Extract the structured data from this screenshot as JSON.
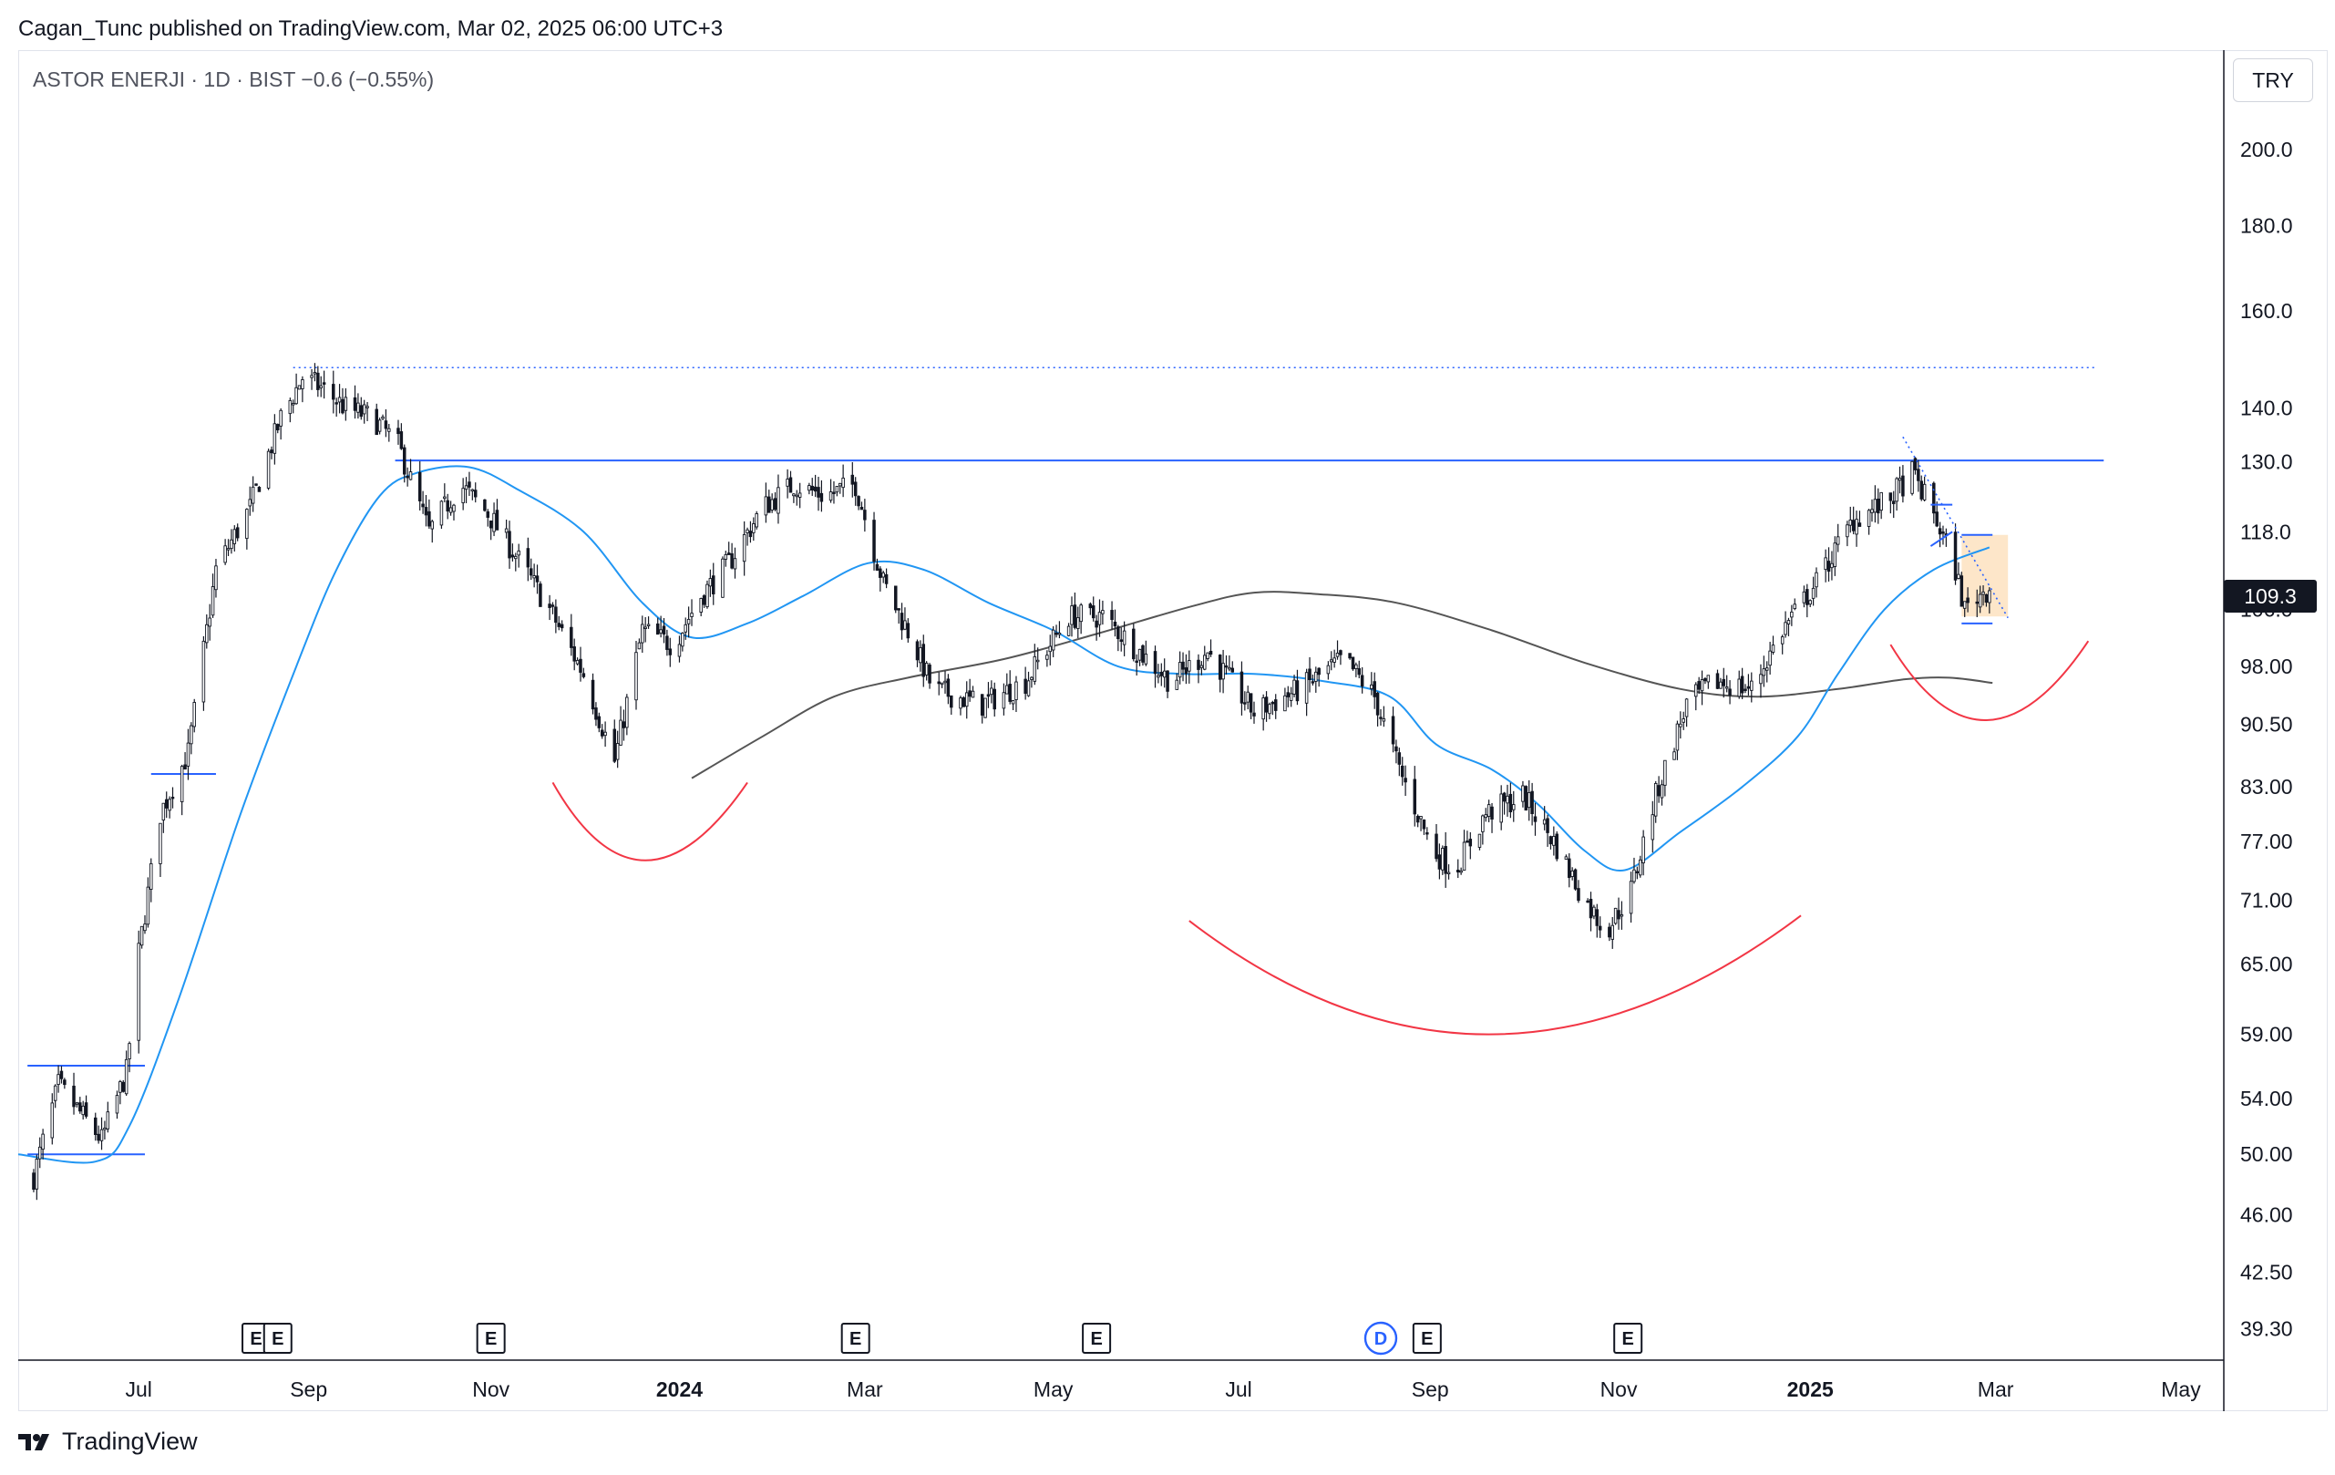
{
  "header": {
    "published_line": "Cagan_Tunc published on TradingView.com, Mar 02, 2025 06:00 UTC+3",
    "symbol_line": "ASTOR ENERJI · 1D · BIST  −0.6 (−0.55%)",
    "currency": "TRY"
  },
  "last_price_label": "109.3",
  "footer": {
    "brand": "TradingView"
  },
  "colors": {
    "candle": "#131722",
    "sma_fast": "#2196f3",
    "sma_slow": "#555555",
    "horizontal_level": "#2962ff",
    "cup_arc": "#f23645",
    "zone_fill": "#fde2c0"
  },
  "chart_data": {
    "type": "candlestick",
    "scale": "log",
    "ylim": [
      37.5,
      220
    ],
    "price_ticks": [
      "200.0",
      "180.0",
      "160.0",
      "140.0",
      "130.0",
      "118.0",
      "106.0",
      "98.00",
      "90.50",
      "83.00",
      "77.00",
      "71.00",
      "65.00",
      "59.00",
      "54.00",
      "50.00",
      "46.00",
      "42.50",
      "39.30"
    ],
    "time_ticks": [
      {
        "label": "Jul",
        "bold": false
      },
      {
        "label": "Sep",
        "bold": false
      },
      {
        "label": "Nov",
        "bold": false
      },
      {
        "label": "2024",
        "bold": true
      },
      {
        "label": "Mar",
        "bold": false
      },
      {
        "label": "May",
        "bold": false
      },
      {
        "label": "Jul",
        "bold": false
      },
      {
        "label": "Sep",
        "bold": false
      },
      {
        "label": "Nov",
        "bold": false
      },
      {
        "label": "2025",
        "bold": true
      },
      {
        "label": "Mar",
        "bold": false
      },
      {
        "label": "May",
        "bold": false
      }
    ],
    "price_path": [
      [
        "2023-06-06",
        48.5
      ],
      [
        "2023-06-14",
        55
      ],
      [
        "2023-06-28",
        51
      ],
      [
        "2023-07-06",
        56
      ],
      [
        "2023-07-10",
        66
      ],
      [
        "2023-07-17",
        80
      ],
      [
        "2023-07-26",
        87
      ],
      [
        "2023-08-04",
        112
      ],
      [
        "2023-08-15",
        122
      ],
      [
        "2023-08-25",
        138
      ],
      [
        "2023-09-01",
        146
      ],
      [
        "2023-09-07",
        144
      ],
      [
        "2023-09-15",
        140
      ],
      [
        "2023-09-24",
        138
      ],
      [
        "2023-10-02",
        133
      ],
      [
        "2023-10-12",
        118
      ],
      [
        "2023-10-22",
        126
      ],
      [
        "2023-10-31",
        121
      ],
      [
        "2023-11-08",
        115
      ],
      [
        "2023-11-20",
        106
      ],
      [
        "2023-12-01",
        97
      ],
      [
        "2023-12-11",
        86
      ],
      [
        "2023-12-20",
        103
      ],
      [
        "2023-12-30",
        101
      ],
      [
        "2024-01-08",
        108
      ],
      [
        "2024-01-17",
        113
      ],
      [
        "2024-01-28",
        122
      ],
      [
        "2024-02-07",
        126
      ],
      [
        "2024-02-17",
        124
      ],
      [
        "2024-02-27",
        126
      ],
      [
        "2024-03-07",
        110
      ],
      [
        "2024-03-16",
        102
      ],
      [
        "2024-03-23",
        95
      ],
      [
        "2024-04-08",
        93
      ],
      [
        "2024-04-22",
        96
      ],
      [
        "2024-05-06",
        105
      ],
      [
        "2024-05-17",
        105
      ],
      [
        "2024-05-29",
        100
      ],
      [
        "2024-06-08",
        96
      ],
      [
        "2024-06-20",
        100
      ],
      [
        "2024-07-05",
        92
      ],
      [
        "2024-07-20",
        95
      ],
      [
        "2024-08-03",
        99
      ],
      [
        "2024-08-13",
        94
      ],
      [
        "2024-08-21",
        85
      ],
      [
        "2024-09-01",
        76
      ],
      [
        "2024-09-08",
        74
      ],
      [
        "2024-09-18",
        80
      ],
      [
        "2024-09-30",
        82
      ],
      [
        "2024-10-10",
        77
      ],
      [
        "2024-10-20",
        71
      ],
      [
        "2024-10-27",
        68
      ],
      [
        "2024-11-04",
        72
      ],
      [
        "2024-11-12",
        82
      ],
      [
        "2024-11-22",
        93
      ],
      [
        "2024-12-01",
        96
      ],
      [
        "2024-12-13",
        95
      ],
      [
        "2024-12-23",
        103
      ],
      [
        "2025-01-03",
        110
      ],
      [
        "2025-01-15",
        120
      ],
      [
        "2025-01-26",
        123
      ],
      [
        "2025-02-03",
        128
      ],
      [
        "2025-02-10",
        121
      ],
      [
        "2025-02-17",
        112
      ],
      [
        "2025-02-20",
        106
      ],
      [
        "2025-02-24",
        108
      ],
      [
        "2025-02-28",
        109.3
      ]
    ],
    "sma_fast_path": [
      [
        "2023-06-01",
        50
      ],
      [
        "2023-06-26",
        49.5
      ],
      [
        "2023-07-07",
        52
      ],
      [
        "2023-07-23",
        62
      ],
      [
        "2023-08-12",
        80
      ],
      [
        "2023-08-30",
        98
      ],
      [
        "2023-09-12",
        112
      ],
      [
        "2023-09-26",
        124
      ],
      [
        "2023-10-08",
        128
      ],
      [
        "2023-10-25",
        129
      ],
      [
        "2023-11-10",
        125
      ],
      [
        "2023-12-01",
        118
      ],
      [
        "2023-12-20",
        107
      ],
      [
        "2024-01-05",
        102
      ],
      [
        "2024-01-23",
        104
      ],
      [
        "2024-02-10",
        108
      ],
      [
        "2024-03-02",
        113
      ],
      [
        "2024-03-20",
        112
      ],
      [
        "2024-04-10",
        107
      ],
      [
        "2024-05-01",
        103
      ],
      [
        "2024-05-22",
        98
      ],
      [
        "2024-06-12",
        97
      ],
      [
        "2024-07-05",
        97
      ],
      [
        "2024-07-28",
        96
      ],
      [
        "2024-08-18",
        94
      ],
      [
        "2024-09-02",
        88
      ],
      [
        "2024-09-20",
        85
      ],
      [
        "2024-10-05",
        81
      ],
      [
        "2024-10-20",
        76
      ],
      [
        "2024-11-02",
        74
      ],
      [
        "2024-11-20",
        78
      ],
      [
        "2024-12-10",
        83
      ],
      [
        "2024-12-28",
        89
      ],
      [
        "2025-01-10",
        97
      ],
      [
        "2025-01-25",
        106
      ],
      [
        "2025-02-10",
        112
      ],
      [
        "2025-02-28",
        115.5
      ]
    ],
    "sma_slow_path": [
      [
        "2024-01-05",
        84
      ],
      [
        "2024-01-28",
        89
      ],
      [
        "2024-02-20",
        94
      ],
      [
        "2024-03-15",
        96.5
      ],
      [
        "2024-04-15",
        99
      ],
      [
        "2024-05-15",
        102.5
      ],
      [
        "2024-06-15",
        106.5
      ],
      [
        "2024-07-05",
        108.5
      ],
      [
        "2024-07-25",
        108.3
      ],
      [
        "2024-08-20",
        107
      ],
      [
        "2024-09-20",
        103
      ],
      [
        "2024-10-20",
        98.5
      ],
      [
        "2024-11-20",
        95
      ],
      [
        "2024-12-15",
        94
      ],
      [
        "2025-01-10",
        95
      ],
      [
        "2025-02-01",
        96.3
      ],
      [
        "2025-02-15",
        96.5
      ],
      [
        "2025-03-01",
        95.8
      ]
    ],
    "levels": [
      {
        "style": "dotted",
        "price": 148,
        "from": "2023-08-29",
        "to": "2025-04-04"
      },
      {
        "style": "solid",
        "price": 130.2,
        "from": "2023-10-01",
        "to": "2025-04-06"
      },
      {
        "style": "solid",
        "price": 84.5,
        "from": "2023-07-14",
        "to": "2023-08-04"
      },
      {
        "style": "solid",
        "price": 56.5,
        "from": "2023-06-04",
        "to": "2023-07-12"
      },
      {
        "style": "solid",
        "price": 50.0,
        "from": "2023-06-04",
        "to": "2023-07-12"
      }
    ],
    "flag_lines": [
      {
        "from": [
          "2025-02-09",
          122.5
        ],
        "to": [
          "2025-02-16",
          122.5
        ]
      },
      {
        "from": [
          "2025-02-09",
          115.7
        ],
        "to": [
          "2025-02-16",
          118
        ]
      },
      {
        "from": [
          "2025-02-19",
          117.5
        ],
        "to": [
          "2025-03-01",
          117.5
        ]
      },
      {
        "from": [
          "2025-02-19",
          104
        ],
        "to": [
          "2025-03-01",
          104
        ]
      }
    ],
    "trendline": {
      "from": [
        "2025-01-31",
        134.5
      ],
      "to": [
        "2025-03-06",
        104.8
      ]
    },
    "target_box": {
      "from": [
        "2025-02-19",
        117.5
      ],
      "to": [
        "2025-03-06",
        105
      ]
    },
    "cup_arcs": [
      {
        "left": [
          "2023-11-21",
          83.5
        ],
        "bottom": [
          "2023-12-21",
          75
        ],
        "right": [
          "2024-01-23",
          83.5
        ]
      },
      {
        "left": [
          "2024-06-14",
          69
        ],
        "bottom": [
          "2024-09-20",
          59
        ],
        "right": [
          "2024-12-29",
          69.5
        ]
      },
      {
        "left": [
          "2025-01-27",
          101
        ],
        "bottom": [
          "2025-02-27",
          91
        ],
        "right": [
          "2025-04-01",
          101.5
        ]
      }
    ],
    "events": [
      {
        "date": "2023-08-17",
        "kind": "E"
      },
      {
        "date": "2023-08-24",
        "kind": "E"
      },
      {
        "date": "2023-11-01",
        "kind": "E"
      },
      {
        "date": "2024-02-27",
        "kind": "E"
      },
      {
        "date": "2024-05-15",
        "kind": "E"
      },
      {
        "date": "2024-08-15",
        "kind": "D"
      },
      {
        "date": "2024-08-30",
        "kind": "E"
      },
      {
        "date": "2024-11-03",
        "kind": "E"
      }
    ]
  }
}
